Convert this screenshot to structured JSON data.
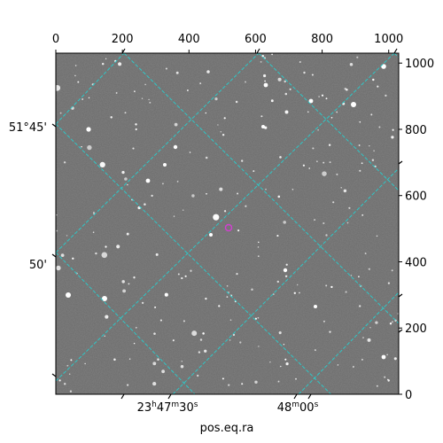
{
  "figure": {
    "xlabel": "pos.eq.ra",
    "top_axis": {
      "ticks": [
        "0",
        "200",
        "400",
        "600",
        "800",
        "1000"
      ],
      "values": [
        0,
        200,
        400,
        600,
        800,
        1000
      ]
    },
    "right_axis": {
      "ticks": [
        "0",
        "200",
        "400",
        "600",
        "800",
        "1000"
      ],
      "values": [
        0,
        200,
        400,
        600,
        800,
        1000
      ]
    },
    "left_axis": {
      "ticks": [
        "51°45'",
        "50'"
      ]
    },
    "bottom_axis": {
      "ticks": [
        "23h47m30s",
        "48m00s"
      ],
      "ra_hour": "23",
      "ra_min": "47",
      "ra_sec": "30",
      "ra2_min": "48",
      "ra2_sec": "00"
    },
    "image_extent": [
      0,
      1030
    ],
    "grid_color": "#2ec7c7",
    "marker_color": "#d040d0",
    "background_color": "#6b6b6b"
  }
}
